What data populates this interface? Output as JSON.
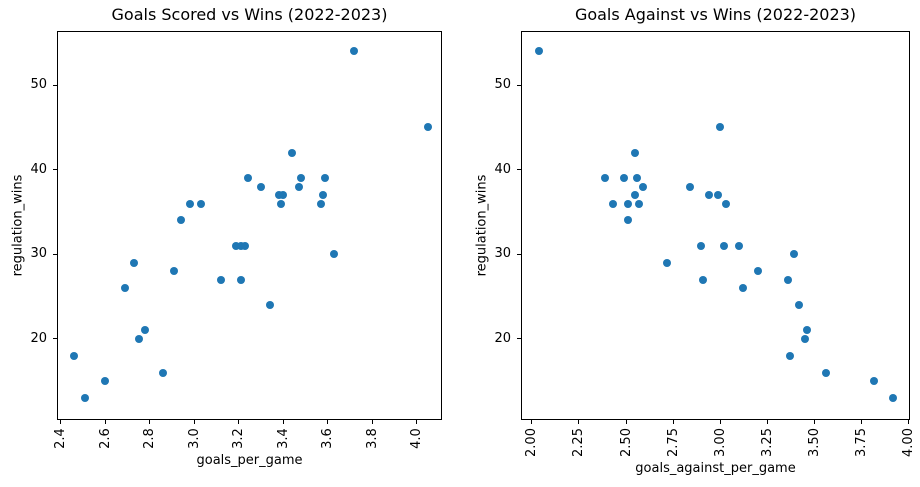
{
  "chart_data": [
    {
      "type": "scatter",
      "title": "Goals Scored vs Wins (2022-2023)",
      "xlabel": "goals_per_game",
      "ylabel": "regulation_wins",
      "xlim": [
        2.383,
        4.114
      ],
      "ylim": [
        10.4,
        56.4
      ],
      "x_ticks": [
        "2.4",
        "2.6",
        "2.8",
        "3.0",
        "3.2",
        "3.4",
        "3.6",
        "3.8",
        "4.0"
      ],
      "y_ticks": [
        "20",
        "30",
        "40",
        "50"
      ],
      "x_tick_rotation": 90,
      "grid": false,
      "legend": null,
      "marker_color": "#1f77b4",
      "points": [
        [
          2.46,
          18
        ],
        [
          2.51,
          13
        ],
        [
          2.6,
          15
        ],
        [
          2.69,
          26
        ],
        [
          2.73,
          29
        ],
        [
          2.75,
          20
        ],
        [
          2.78,
          21
        ],
        [
          2.86,
          16
        ],
        [
          2.91,
          28
        ],
        [
          2.94,
          34
        ],
        [
          2.98,
          36
        ],
        [
          3.03,
          36
        ],
        [
          3.12,
          27
        ],
        [
          3.19,
          31
        ],
        [
          3.21,
          27
        ],
        [
          3.21,
          31
        ],
        [
          3.23,
          31
        ],
        [
          3.24,
          39
        ],
        [
          3.3,
          38
        ],
        [
          3.34,
          24
        ],
        [
          3.38,
          37
        ],
        [
          3.39,
          36
        ],
        [
          3.4,
          37
        ],
        [
          3.44,
          42
        ],
        [
          3.47,
          38
        ],
        [
          3.48,
          39
        ],
        [
          3.57,
          36
        ],
        [
          3.58,
          37
        ],
        [
          3.59,
          39
        ],
        [
          3.63,
          30
        ],
        [
          3.72,
          54
        ],
        [
          4.05,
          45
        ]
      ]
    },
    {
      "type": "scatter",
      "title": "Goals Against vs Wins (2022-2023)",
      "xlabel": "goals_against_per_game",
      "ylabel": "regulation_wins",
      "xlim": [
        1.942,
        4.009
      ],
      "ylim": [
        10.4,
        56.4
      ],
      "x_ticks": [
        "2.00",
        "2.25",
        "2.50",
        "2.75",
        "3.00",
        "3.25",
        "3.50",
        "3.75",
        "4.00"
      ],
      "y_ticks": [
        "20",
        "30",
        "40",
        "50"
      ],
      "x_tick_rotation": 90,
      "grid": false,
      "legend": null,
      "marker_color": "#1f77b4",
      "points": [
        [
          2.04,
          54
        ],
        [
          2.39,
          39
        ],
        [
          2.43,
          36
        ],
        [
          2.49,
          39
        ],
        [
          2.51,
          34
        ],
        [
          2.51,
          36
        ],
        [
          2.55,
          37
        ],
        [
          2.55,
          42
        ],
        [
          2.56,
          39
        ],
        [
          2.57,
          36
        ],
        [
          2.59,
          38
        ],
        [
          2.72,
          29
        ],
        [
          2.84,
          38
        ],
        [
          2.9,
          31
        ],
        [
          2.91,
          27
        ],
        [
          2.94,
          37
        ],
        [
          2.99,
          37
        ],
        [
          3.0,
          45
        ],
        [
          3.02,
          31
        ],
        [
          3.03,
          36
        ],
        [
          3.1,
          31
        ],
        [
          3.12,
          26
        ],
        [
          3.2,
          28
        ],
        [
          3.36,
          27
        ],
        [
          3.37,
          18
        ],
        [
          3.39,
          30
        ],
        [
          3.42,
          24
        ],
        [
          3.45,
          20
        ],
        [
          3.46,
          21
        ],
        [
          3.56,
          16
        ],
        [
          3.82,
          15
        ],
        [
          3.92,
          13
        ]
      ]
    }
  ]
}
